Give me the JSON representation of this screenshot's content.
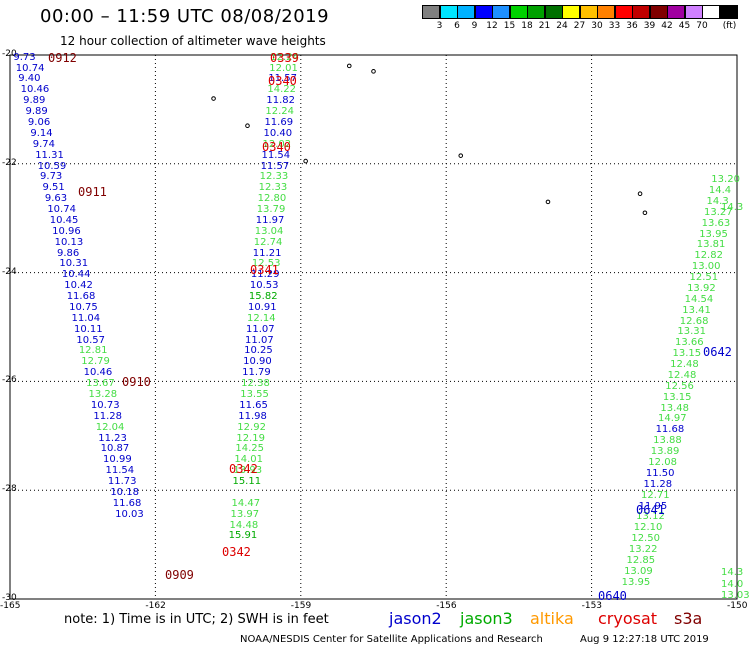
{
  "title": "00:00 – 11:59 UTC 08/08/2019",
  "subtitle": "12 hour collection of altimeter wave heights",
  "colorbar": {
    "colors": [
      "#808080",
      "#00e5ff",
      "#00b2ff",
      "#0000ff",
      "#1e90ff",
      "#00d100",
      "#00a000",
      "#007000",
      "#ffff00",
      "#ffc000",
      "#ff8000",
      "#ff0000",
      "#c00000",
      "#800000",
      "#a000a0",
      "#d080ff",
      "#ffffff",
      "#000000"
    ],
    "labels": [
      "3",
      "6",
      "9",
      "12",
      "15",
      "18",
      "21",
      "24",
      "27",
      "30",
      "33",
      "36",
      "39",
      "42",
      "45",
      "70",
      "(ft)"
    ]
  },
  "axes": {
    "lon_labels": [
      "-165",
      "-162",
      "-159",
      "-156",
      "-153",
      "-150"
    ],
    "lat_labels": [
      "-20",
      "-22",
      "-24",
      "-26",
      "-28",
      "-30"
    ],
    "lon_range": [
      -165,
      -150
    ],
    "lat_range": [
      -30,
      -20
    ]
  },
  "note": "note:  1) Time is in UTC;  2) SWH is in feet",
  "legend": [
    {
      "name": "jason2",
      "color": "#0000cc"
    },
    {
      "name": "jason3",
      "color": "#00aa00"
    },
    {
      "name": "altika",
      "color": "#ff9900"
    },
    {
      "name": "cryosat",
      "color": "#dd0000"
    },
    {
      "name": "s3a",
      "color": "#800000"
    }
  ],
  "credit": "NOAA/NESDIS Center for Satellite Applications and Research",
  "timestamp": "Aug  9 12:27:18 UTC 2019",
  "colors": {
    "jason2": "#0000cc",
    "jason3": "#44dd44",
    "jason3dark": "#00aa00",
    "cryosat": "#dd0000",
    "s3a": "#800000"
  },
  "tracks": {
    "s3a_west": {
      "sat": "s3a",
      "color": "#0000cc",
      "values": [
        {
          "lon": -164.6,
          "lat": -20.05,
          "v": "9.73"
        },
        {
          "lon": -164.55,
          "lat": -20.25,
          "v": "10.74"
        },
        {
          "lon": -164.5,
          "lat": -20.45,
          "v": "9.40"
        },
        {
          "lon": -164.45,
          "lat": -20.65,
          "v": "10.46"
        },
        {
          "lon": -164.4,
          "lat": -20.85,
          "v": "9.89"
        },
        {
          "lon": -164.35,
          "lat": -21.05,
          "v": "9.89"
        },
        {
          "lon": -164.3,
          "lat": -21.25,
          "v": "9.06"
        },
        {
          "lon": -164.25,
          "lat": -21.45,
          "v": "9.14"
        },
        {
          "lon": -164.2,
          "lat": -21.65,
          "v": "9.74"
        },
        {
          "lon": -164.15,
          "lat": -21.85,
          "v": "11.31"
        },
        {
          "lon": -164.1,
          "lat": -22.05,
          "v": "10.59"
        },
        {
          "lon": -164.05,
          "lat": -22.25,
          "v": "9.73"
        },
        {
          "lon": -164.0,
          "lat": -22.45,
          "v": "9.51"
        },
        {
          "lon": -163.95,
          "lat": -22.65,
          "v": "9.63"
        },
        {
          "lon": -163.9,
          "lat": -22.85,
          "v": "10.74"
        },
        {
          "lon": -163.85,
          "lat": -23.05,
          "v": "10.45"
        },
        {
          "lon": -163.8,
          "lat": -23.25,
          "v": "10.96"
        },
        {
          "lon": -163.75,
          "lat": -23.45,
          "v": "10.13"
        },
        {
          "lon": -163.7,
          "lat": -23.65,
          "v": "9.86"
        },
        {
          "lon": -163.65,
          "lat": -23.85,
          "v": "10.31"
        },
        {
          "lon": -163.6,
          "lat": -24.05,
          "v": "10.44"
        },
        {
          "lon": -163.55,
          "lat": -24.25,
          "v": "10.42"
        },
        {
          "lon": -163.5,
          "lat": -24.45,
          "v": "11.68"
        },
        {
          "lon": -163.45,
          "lat": -24.65,
          "v": "10.75"
        },
        {
          "lon": -163.4,
          "lat": -24.85,
          "v": "11.04"
        },
        {
          "lon": -163.35,
          "lat": -25.05,
          "v": "10.11"
        },
        {
          "lon": -163.3,
          "lat": -25.25,
          "v": "10.57"
        },
        {
          "lon": -163.25,
          "lat": -25.45,
          "v": "12.81",
          "c": "#44dd44"
        },
        {
          "lon": -163.2,
          "lat": -25.65,
          "v": "12.79",
          "c": "#44dd44"
        },
        {
          "lon": -163.15,
          "lat": -25.85,
          "v": "10.46"
        },
        {
          "lon": -163.1,
          "lat": -26.05,
          "v": "13.67",
          "c": "#44dd44"
        },
        {
          "lon": -163.05,
          "lat": -26.25,
          "v": "13.28",
          "c": "#44dd44"
        },
        {
          "lon": -163.0,
          "lat": -26.45,
          "v": "10.73"
        },
        {
          "lon": -162.95,
          "lat": -26.65,
          "v": "11.28"
        },
        {
          "lon": -162.9,
          "lat": -26.85,
          "v": "12.04",
          "c": "#44dd44"
        },
        {
          "lon": -162.85,
          "lat": -27.05,
          "v": "11.23"
        },
        {
          "lon": -162.8,
          "lat": -27.25,
          "v": "10.87"
        },
        {
          "lon": -162.75,
          "lat": -27.45,
          "v": "10.99"
        },
        {
          "lon": -162.7,
          "lat": -27.65,
          "v": "11.54"
        },
        {
          "lon": -162.65,
          "lat": -27.85,
          "v": "11.73"
        },
        {
          "lon": -162.6,
          "lat": -28.05,
          "v": "10.18"
        },
        {
          "lon": -162.55,
          "lat": -28.25,
          "v": "11.68"
        },
        {
          "lon": -162.5,
          "lat": -28.45,
          "v": "10.03"
        }
      ]
    },
    "cryosat_mid": {
      "sat": "cryosat",
      "color": "#44dd44",
      "values": [
        {
          "lon": -159.3,
          "lat": -20.05,
          "v": "12.24"
        },
        {
          "lon": -159.32,
          "lat": -20.25,
          "v": "12.01"
        },
        {
          "lon": -159.34,
          "lat": -20.45,
          "v": "11.57",
          "c": "#0000cc"
        },
        {
          "lon": -159.36,
          "lat": -20.65,
          "v": "14.22"
        },
        {
          "lon": -159.38,
          "lat": -20.85,
          "v": "11.82",
          "c": "#0000cc"
        },
        {
          "lon": -159.4,
          "lat": -21.05,
          "v": "12.24"
        },
        {
          "lon": -159.42,
          "lat": -21.25,
          "v": "11.69",
          "c": "#0000cc"
        },
        {
          "lon": -159.44,
          "lat": -21.45,
          "v": "10.40",
          "c": "#0000cc"
        },
        {
          "lon": -159.46,
          "lat": -21.65,
          "v": "12.02"
        },
        {
          "lon": -159.48,
          "lat": -21.85,
          "v": "11.54",
          "c": "#0000cc"
        },
        {
          "lon": -159.5,
          "lat": -22.05,
          "v": "11.57",
          "c": "#0000cc"
        },
        {
          "lon": -159.52,
          "lat": -22.25,
          "v": "12.33"
        },
        {
          "lon": -159.54,
          "lat": -22.45,
          "v": "12.33"
        },
        {
          "lon": -159.56,
          "lat": -22.65,
          "v": "12.80"
        },
        {
          "lon": -159.58,
          "lat": -22.85,
          "v": "13.79"
        },
        {
          "lon": -159.6,
          "lat": -23.05,
          "v": "11.97",
          "c": "#0000cc"
        },
        {
          "lon": -159.62,
          "lat": -23.25,
          "v": "13.04"
        },
        {
          "lon": -159.64,
          "lat": -23.45,
          "v": "12.74"
        },
        {
          "lon": -159.66,
          "lat": -23.65,
          "v": "11.21",
          "c": "#0000cc"
        },
        {
          "lon": -159.68,
          "lat": -23.85,
          "v": "12.53"
        },
        {
          "lon": -159.7,
          "lat": -24.05,
          "v": "11.29",
          "c": "#0000cc"
        },
        {
          "lon": -159.72,
          "lat": -24.25,
          "v": "10.53",
          "c": "#0000cc"
        },
        {
          "lon": -159.74,
          "lat": -24.45,
          "v": "15.82",
          "c": "#00aa00"
        },
        {
          "lon": -159.76,
          "lat": -24.65,
          "v": "10.91",
          "c": "#0000cc"
        },
        {
          "lon": -159.78,
          "lat": -24.85,
          "v": "12.14"
        },
        {
          "lon": -159.8,
          "lat": -25.05,
          "v": "11.07",
          "c": "#0000cc"
        },
        {
          "lon": -159.82,
          "lat": -25.25,
          "v": "11.07",
          "c": "#0000cc"
        },
        {
          "lon": -159.84,
          "lat": -25.45,
          "v": "10.25",
          "c": "#0000cc"
        },
        {
          "lon": -159.86,
          "lat": -25.65,
          "v": "10.90",
          "c": "#0000cc"
        },
        {
          "lon": -159.88,
          "lat": -25.85,
          "v": "11.79",
          "c": "#0000cc"
        },
        {
          "lon": -159.9,
          "lat": -26.05,
          "v": "12.38"
        },
        {
          "lon": -159.92,
          "lat": -26.25,
          "v": "13.55"
        },
        {
          "lon": -159.94,
          "lat": -26.45,
          "v": "11.65",
          "c": "#0000cc"
        },
        {
          "lon": -159.96,
          "lat": -26.65,
          "v": "11.98",
          "c": "#0000cc"
        },
        {
          "lon": -159.98,
          "lat": -26.85,
          "v": "12.92"
        },
        {
          "lon": -160.0,
          "lat": -27.05,
          "v": "12.19"
        },
        {
          "lon": -160.02,
          "lat": -27.25,
          "v": "14.25"
        },
        {
          "lon": -160.04,
          "lat": -27.45,
          "v": "14.01"
        },
        {
          "lon": -160.06,
          "lat": -27.65,
          "v": "13.93"
        },
        {
          "lon": -160.08,
          "lat": -27.85,
          "v": "15.11",
          "c": "#00aa00"
        },
        {
          "lon": -160.1,
          "lat": -28.25,
          "v": "14.47"
        },
        {
          "lon": -160.12,
          "lat": -28.45,
          "v": "13.97"
        },
        {
          "lon": -160.14,
          "lat": -28.65,
          "v": "14.48"
        },
        {
          "lon": -160.16,
          "lat": -28.85,
          "v": "15.91",
          "c": "#00aa00"
        }
      ]
    },
    "jason_east": {
      "sat": "jason3",
      "color": "#44dd44",
      "values": [
        {
          "lon": -150.2,
          "lat": -22.3,
          "v": "13.20"
        },
        {
          "lon": -150.25,
          "lat": -22.5,
          "v": "14.4"
        },
        {
          "lon": -150.3,
          "lat": -22.7,
          "v": "14.3"
        },
        {
          "lon": -150.35,
          "lat": -22.9,
          "v": "13.27"
        },
        {
          "lon": -150.4,
          "lat": -23.1,
          "v": "13.63"
        },
        {
          "lon": -150.45,
          "lat": -23.3,
          "v": "13.95"
        },
        {
          "lon": -150.5,
          "lat": -23.5,
          "v": "13.81"
        },
        {
          "lon": -150.55,
          "lat": -23.7,
          "v": "12.82"
        },
        {
          "lon": -150.6,
          "lat": -23.9,
          "v": "13.00"
        },
        {
          "lon": -150.65,
          "lat": -24.1,
          "v": "12.51"
        },
        {
          "lon": -150.7,
          "lat": -24.3,
          "v": "13.92"
        },
        {
          "lon": -150.75,
          "lat": -24.5,
          "v": "14.54"
        },
        {
          "lon": -150.8,
          "lat": -24.7,
          "v": "13.41"
        },
        {
          "lon": -150.85,
          "lat": -24.9,
          "v": "12.68"
        },
        {
          "lon": -150.9,
          "lat": -25.1,
          "v": "13.31"
        },
        {
          "lon": -150.95,
          "lat": -25.3,
          "v": "13.66"
        },
        {
          "lon": -151.0,
          "lat": -25.5,
          "v": "13.15"
        },
        {
          "lon": -151.05,
          "lat": -25.7,
          "v": "12.48"
        },
        {
          "lon": -151.1,
          "lat": -25.9,
          "v": "12.48"
        },
        {
          "lon": -151.15,
          "lat": -26.1,
          "v": "12.56"
        },
        {
          "lon": -151.2,
          "lat": -26.3,
          "v": "13.15"
        },
        {
          "lon": -151.25,
          "lat": -26.5,
          "v": "13.48"
        },
        {
          "lon": -151.3,
          "lat": -26.7,
          "v": "14.97"
        },
        {
          "lon": -151.35,
          "lat": -26.9,
          "v": "11.68",
          "c": "#0000cc"
        },
        {
          "lon": -151.4,
          "lat": -27.1,
          "v": "13.88"
        },
        {
          "lon": -151.45,
          "lat": -27.3,
          "v": "13.89"
        },
        {
          "lon": -151.5,
          "lat": -27.5,
          "v": "12.08"
        },
        {
          "lon": -151.55,
          "lat": -27.7,
          "v": "11.50",
          "c": "#0000cc"
        },
        {
          "lon": -151.6,
          "lat": -27.9,
          "v": "11.28",
          "c": "#0000cc"
        },
        {
          "lon": -151.65,
          "lat": -28.1,
          "v": "12.71"
        },
        {
          "lon": -151.7,
          "lat": -28.3,
          "v": "11.95",
          "c": "#0000cc"
        },
        {
          "lon": -151.75,
          "lat": -28.5,
          "v": "13.12"
        },
        {
          "lon": -151.8,
          "lat": -28.7,
          "v": "12.10"
        },
        {
          "lon": -151.85,
          "lat": -28.9,
          "v": "12.50"
        },
        {
          "lon": -151.9,
          "lat": -29.1,
          "v": "13.22"
        },
        {
          "lon": -151.95,
          "lat": -29.3,
          "v": "12.85"
        },
        {
          "lon": -152.0,
          "lat": -29.5,
          "v": "13.09"
        },
        {
          "lon": -152.05,
          "lat": -29.7,
          "v": "13.95"
        }
      ]
    }
  },
  "time_labels": [
    {
      "t": "0912",
      "c": "#800000"
    },
    {
      "t": "0339",
      "c": "#dd0000"
    },
    {
      "t": "0340",
      "c": "#dd0000"
    },
    {
      "t": "0340",
      "c": "#dd0000"
    },
    {
      "t": "0911",
      "c": "#800000"
    },
    {
      "t": "0341",
      "c": "#dd0000"
    },
    {
      "t": "0910",
      "c": "#800000"
    },
    {
      "t": "0342",
      "c": "#dd0000"
    },
    {
      "t": "0342",
      "c": "#dd0000"
    },
    {
      "t": "0909",
      "c": "#800000"
    },
    {
      "t": "0642",
      "c": "#0000cc"
    },
    {
      "t": "0641",
      "c": "#0000cc"
    },
    {
      "t": "0640",
      "c": "#0000cc"
    }
  ],
  "edge_values": [
    {
      "v": "14.3"
    },
    {
      "v": "14.0"
    },
    {
      "v": "14.3"
    },
    {
      "v": "13.03"
    }
  ]
}
